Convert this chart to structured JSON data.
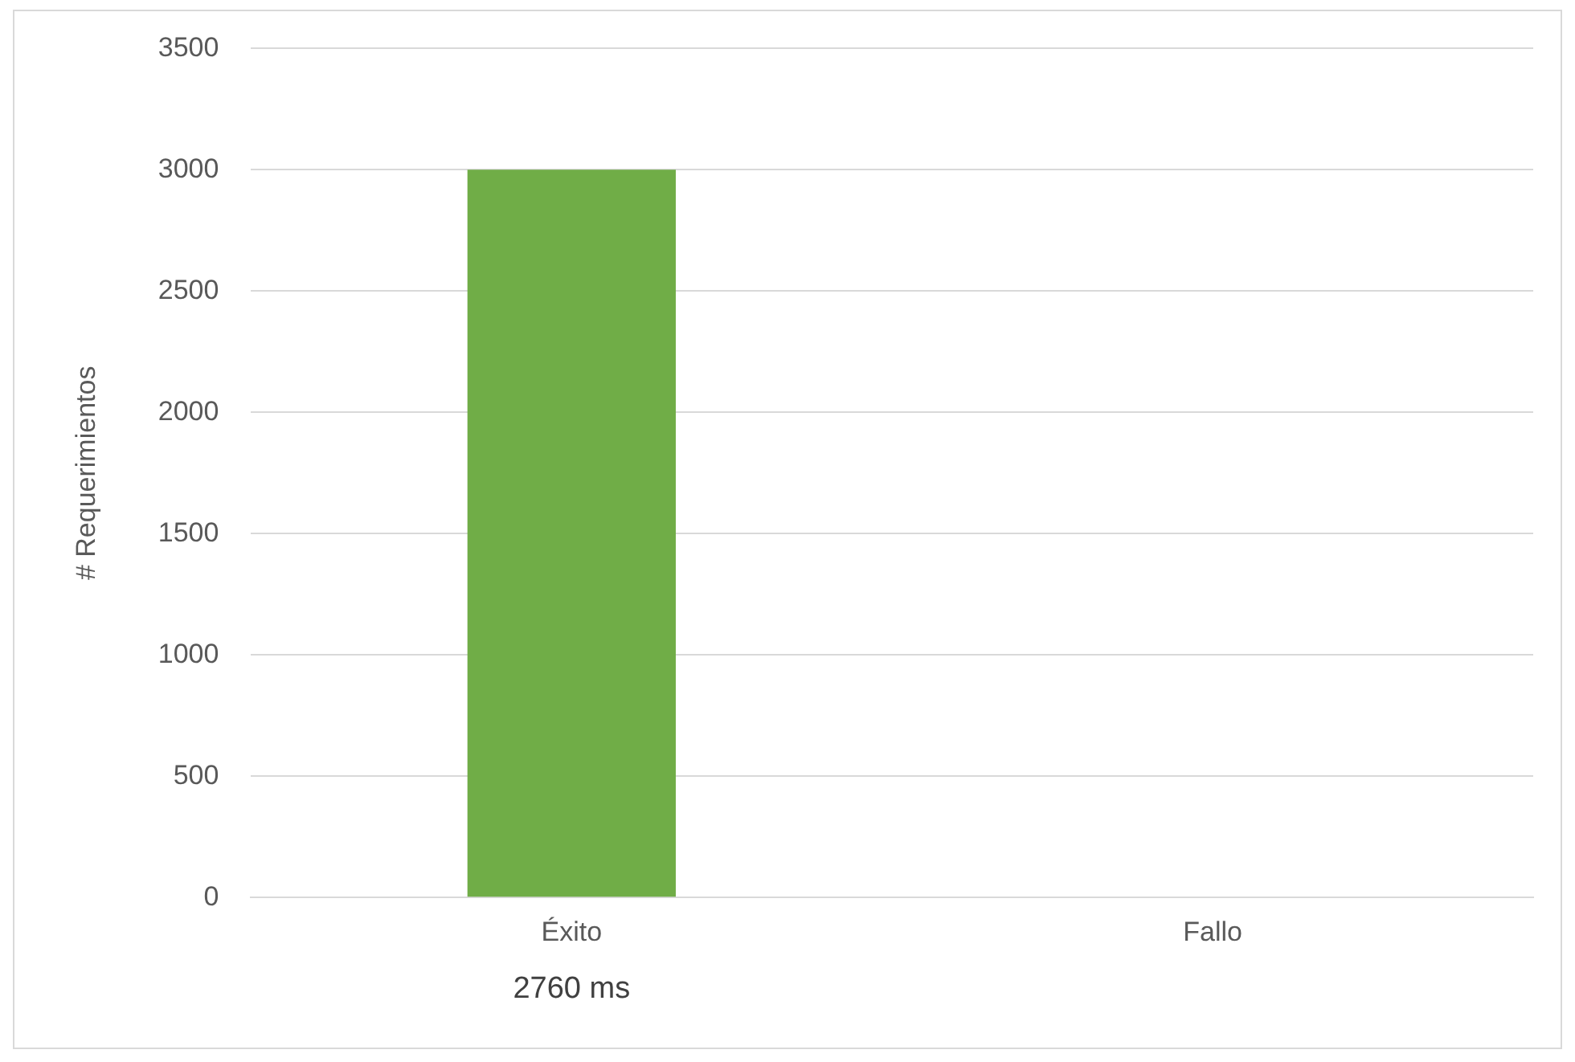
{
  "chart_data": {
    "type": "bar",
    "ylabel": "# Requerimientos",
    "categories": [
      "Éxito",
      "Fallo"
    ],
    "values": [
      3000,
      0
    ],
    "color": "#70ad47",
    "ylim": [
      0,
      3500
    ],
    "yticks": [
      0,
      500,
      1000,
      1500,
      2000,
      2500,
      3000,
      3500
    ],
    "grid": "y",
    "legend": false,
    "annotations": [
      "2760 ms"
    ]
  }
}
